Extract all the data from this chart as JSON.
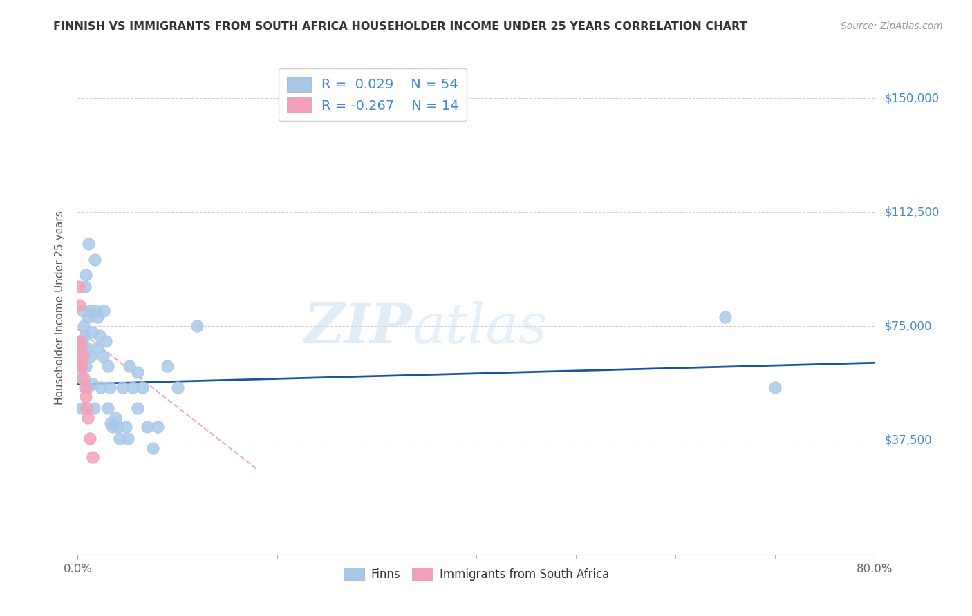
{
  "title": "FINNISH VS IMMIGRANTS FROM SOUTH AFRICA HOUSEHOLDER INCOME UNDER 25 YEARS CORRELATION CHART",
  "source": "Source: ZipAtlas.com",
  "ylabel": "Householder Income Under 25 years",
  "yticks": [
    0,
    37500,
    75000,
    112500,
    150000
  ],
  "ytick_labels": [
    "",
    "$37,500",
    "$75,000",
    "$112,500",
    "$150,000"
  ],
  "xmin": 0.0,
  "xmax": 0.8,
  "ymin": 0,
  "ymax": 162000,
  "watermark": "ZIPatlas",
  "legend_finn_r": "0.029",
  "legend_finn_n": "54",
  "legend_imm_r": "-0.267",
  "legend_imm_n": "14",
  "finn_color": "#a8c8e8",
  "imm_color": "#f4a0b8",
  "trendline_finn_color": "#1a56a0",
  "trendline_imm_color": "#e07090",
  "legend_text_color": "#4488cc",
  "finns_x": [
    0.002,
    0.003,
    0.003,
    0.004,
    0.004,
    0.005,
    0.005,
    0.006,
    0.007,
    0.007,
    0.008,
    0.008,
    0.009,
    0.01,
    0.01,
    0.011,
    0.012,
    0.013,
    0.014,
    0.015,
    0.016,
    0.017,
    0.018,
    0.02,
    0.02,
    0.022,
    0.023,
    0.025,
    0.026,
    0.028,
    0.03,
    0.03,
    0.032,
    0.033,
    0.035,
    0.038,
    0.04,
    0.042,
    0.045,
    0.048,
    0.05,
    0.052,
    0.055,
    0.06,
    0.06,
    0.065,
    0.07,
    0.075,
    0.08,
    0.09,
    0.1,
    0.12,
    0.65,
    0.7
  ],
  "finns_y": [
    62000,
    58000,
    70000,
    65000,
    48000,
    68000,
    80000,
    75000,
    72000,
    88000,
    62000,
    92000,
    68000,
    78000,
    55000,
    102000,
    80000,
    65000,
    73000,
    56000,
    48000,
    97000,
    80000,
    78000,
    68000,
    72000,
    55000,
    65000,
    80000,
    70000,
    62000,
    48000,
    55000,
    43000,
    42000,
    45000,
    42000,
    38000,
    55000,
    42000,
    38000,
    62000,
    55000,
    60000,
    48000,
    55000,
    42000,
    35000,
    42000,
    62000,
    55000,
    75000,
    78000,
    55000
  ],
  "immigrants_x": [
    0.001,
    0.002,
    0.002,
    0.003,
    0.003,
    0.004,
    0.005,
    0.006,
    0.007,
    0.008,
    0.009,
    0.01,
    0.012,
    0.015
  ],
  "immigrants_y": [
    88000,
    82000,
    70000,
    68000,
    62000,
    62000,
    65000,
    58000,
    55000,
    52000,
    48000,
    45000,
    38000,
    32000
  ],
  "finn_trend_x": [
    0.0,
    0.8
  ],
  "finn_trend_y": [
    56000,
    63000
  ],
  "imm_trend_x": [
    0.0,
    0.18
  ],
  "imm_trend_y": [
    74000,
    28000
  ]
}
